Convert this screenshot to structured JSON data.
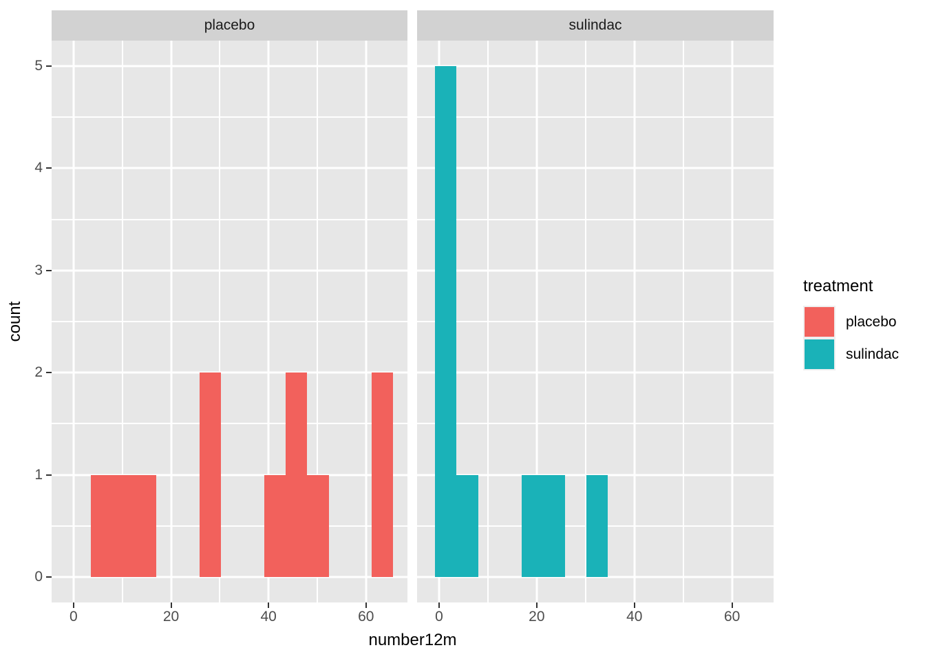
{
  "chart_data": {
    "type": "bar",
    "subtype": "faceted-histogram",
    "title": "",
    "xlabel": "number12m",
    "ylabel": "count",
    "xlim": [
      -4.5,
      68.5
    ],
    "ylim": [
      -0.25,
      5.25
    ],
    "x_ticks": [
      0,
      20,
      40,
      60
    ],
    "x_minor_ticks": [
      10,
      30,
      50
    ],
    "y_ticks": [
      0,
      1,
      2,
      3,
      4,
      5
    ],
    "y_minor_ticks": [
      0.5,
      1.5,
      2.5,
      3.5,
      4.5
    ],
    "grid": "white major and minor gridlines on gray panels",
    "legend_position": "right",
    "binwidth": 4.43,
    "facets": [
      {
        "label": "placebo",
        "color": "#F2615C",
        "bins": [
          {
            "x0": 3.6,
            "x1": 8.1,
            "count": 1
          },
          {
            "x0": 8.1,
            "x1": 12.5,
            "count": 1
          },
          {
            "x0": 12.5,
            "x1": 16.9,
            "count": 1
          },
          {
            "x0": 25.8,
            "x1": 30.2,
            "count": 2
          },
          {
            "x0": 39.1,
            "x1": 43.5,
            "count": 1
          },
          {
            "x0": 43.5,
            "x1": 47.9,
            "count": 2
          },
          {
            "x0": 47.9,
            "x1": 52.4,
            "count": 1
          },
          {
            "x0": 61.2,
            "x1": 65.6,
            "count": 2
          }
        ]
      },
      {
        "label": "sulindac",
        "color": "#1AB2B8",
        "bins": [
          {
            "x0": -0.8,
            "x1": 3.6,
            "count": 5
          },
          {
            "x0": 3.6,
            "x1": 8.1,
            "count": 1
          },
          {
            "x0": 16.9,
            "x1": 21.4,
            "count": 1
          },
          {
            "x0": 21.4,
            "x1": 25.8,
            "count": 1
          },
          {
            "x0": 30.2,
            "x1": 34.6,
            "count": 1
          }
        ]
      }
    ],
    "legend": {
      "title": "treatment",
      "entries": [
        {
          "label": "placebo",
          "color": "#F2615C"
        },
        {
          "label": "sulindac",
          "color": "#1AB2B8"
        }
      ]
    }
  },
  "style": {
    "panel_bg": "#E7E7E7",
    "strip_bg": "#D2D2D2",
    "grid_color": "#FFFFFF",
    "tick_mark_color": "#333333",
    "tick_label_color": "#4D4D4D",
    "axis_title_color": "#000000",
    "legend_key_bg": "#EFEFEF",
    "background": "#FFFFFF"
  }
}
